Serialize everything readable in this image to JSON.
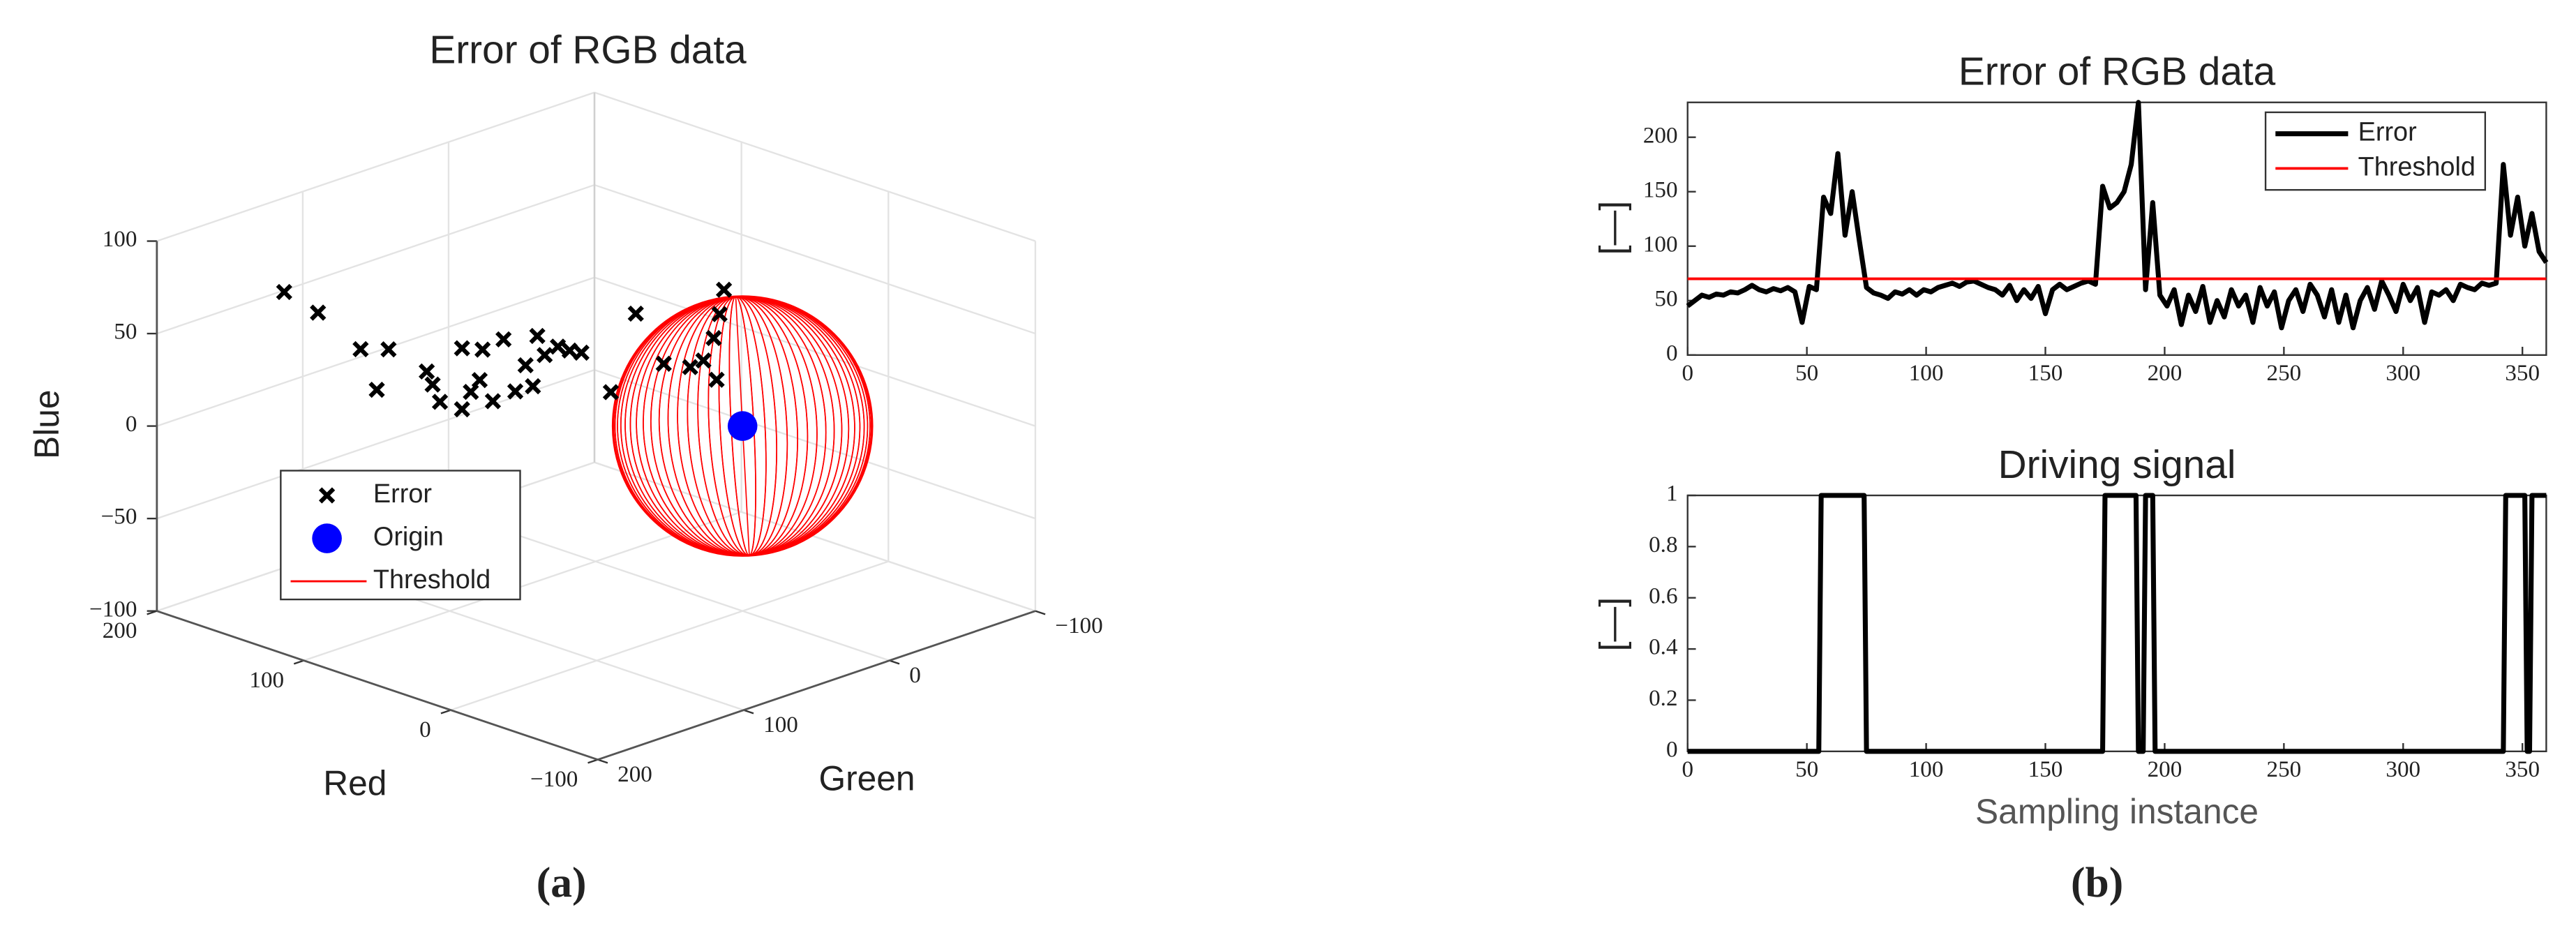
{
  "chart_data": [
    {
      "type": "scatter3d",
      "title": "Error of RGB data",
      "xlabel": "Red",
      "ylabel": "Green",
      "zlabel": "Blue",
      "xlim": [
        -100,
        200
      ],
      "ylim": [
        -100,
        200
      ],
      "zlim": [
        -100,
        100
      ],
      "xticks": [
        {
          "value": -100,
          "label": "−100"
        },
        0,
        100,
        200
      ],
      "yticks": [
        {
          "value": -100,
          "label": "−100"
        },
        0,
        100,
        200
      ],
      "zticks": [
        {
          "value": -100,
          "label": "−100"
        },
        {
          "value": -50,
          "label": "−50"
        },
        0,
        50,
        100
      ],
      "grid": true,
      "legend": "lower left",
      "series": [
        {
          "name": "Error",
          "color": "#000000",
          "x": [
            163,
            140,
            111,
            92,
            100,
            66,
            62,
            57,
            42,
            36,
            42,
            28,
            21,
            30,
            113,
            105,
            98,
            90,
            85,
            76,
            68,
            60,
            93,
            40,
            23,
            4,
            -14,
            -23,
            -30,
            -34,
            -32,
            -37
          ],
          "y": [
            150,
            150,
            150,
            150,
            150,
            150,
            150,
            150,
            150,
            150,
            150,
            150,
            150,
            150,
            50,
            50,
            50,
            50,
            50,
            50,
            50,
            50,
            50,
            50,
            50,
            50,
            50,
            50,
            50,
            50,
            50,
            50
          ],
          "z": [
            69,
            64,
            52,
            57,
            33,
            52,
            46,
            38,
            71,
            49,
            38,
            74,
            48,
            57,
            30,
            4,
            20,
            38,
            29,
            36,
            36,
            37,
            10,
            21,
            68,
            46,
            49,
            55,
            69,
            83,
            47,
            97
          ]
        },
        {
          "name": "Origin",
          "color": "#0000ff",
          "x": [
            0
          ],
          "y": [
            0
          ],
          "z": [
            0
          ]
        },
        {
          "name": "Threshold",
          "color": "#ff0000",
          "radius": 70
        }
      ]
    },
    {
      "type": "line",
      "title": "Error of RGB data",
      "ylabel": "[—]",
      "xlim": [
        0,
        360
      ],
      "ylim": [
        0,
        232
      ],
      "xticks": [
        0,
        50,
        100,
        150,
        200,
        250,
        300,
        350
      ],
      "yticks": [
        0,
        50,
        100,
        150,
        200
      ],
      "legend": "upper right",
      "series": [
        {
          "name": "Error",
          "color": "#000000",
          "x": [
            0,
            3,
            6,
            9,
            12,
            15,
            18,
            21,
            24,
            27,
            30,
            33,
            36,
            39,
            42,
            45,
            48,
            51,
            54,
            57,
            60,
            63,
            66,
            69,
            72,
            75,
            78,
            81,
            84,
            87,
            90,
            93,
            96,
            99,
            102,
            105,
            108,
            111,
            114,
            117,
            120,
            123,
            126,
            129,
            132,
            135,
            138,
            141,
            144,
            147,
            150,
            153,
            156,
            159,
            162,
            165,
            168,
            171,
            174,
            177,
            180,
            183,
            186,
            189,
            192,
            195,
            198,
            201,
            204,
            207,
            210,
            213,
            216,
            219,
            222,
            225,
            228,
            231,
            234,
            237,
            240,
            243,
            246,
            249,
            252,
            255,
            258,
            261,
            264,
            267,
            270,
            273,
            276,
            279,
            282,
            285,
            288,
            291,
            294,
            297,
            300,
            303,
            306,
            309,
            312,
            315,
            318,
            321,
            324,
            327,
            330,
            333,
            336,
            339,
            342,
            345,
            348,
            351,
            354,
            357,
            360
          ],
          "values": [
            45,
            50,
            55,
            53,
            56,
            55,
            58,
            57,
            60,
            64,
            60,
            58,
            61,
            59,
            62,
            58,
            30,
            63,
            60,
            145,
            130,
            185,
            110,
            150,
            105,
            62,
            57,
            55,
            52,
            58,
            56,
            60,
            55,
            60,
            58,
            62,
            64,
            66,
            63,
            67,
            68,
            65,
            62,
            60,
            55,
            64,
            50,
            60,
            52,
            63,
            38,
            60,
            65,
            60,
            63,
            66,
            68,
            65,
            155,
            135,
            140,
            150,
            175,
            232,
            60,
            140,
            55,
            45,
            60,
            28,
            55,
            40,
            63,
            30,
            50,
            35,
            60,
            45,
            55,
            30,
            62,
            45,
            58,
            25,
            50,
            60,
            40,
            65,
            55,
            35,
            60,
            30,
            55,
            25,
            50,
            62,
            42,
            68,
            55,
            40,
            65,
            50,
            62,
            30,
            58,
            55,
            60,
            50,
            65,
            62,
            60,
            66,
            64,
            66,
            175,
            110,
            145,
            100,
            130,
            95,
            85
          ]
        },
        {
          "name": "Threshold",
          "color": "#ff0000",
          "x": [
            0,
            360
          ],
          "values": [
            70,
            70
          ]
        }
      ]
    },
    {
      "type": "line",
      "title": "Driving signal",
      "ylabel": "[—]",
      "xlabel": "Sampling instance",
      "xlim": [
        0,
        360
      ],
      "ylim": [
        0,
        1
      ],
      "xticks": [
        0,
        50,
        100,
        150,
        200,
        250,
        300,
        350
      ],
      "yticks": [
        0,
        0.2,
        0.4,
        0.6,
        0.8,
        1
      ],
      "series": [
        {
          "color": "#000000",
          "x": [
            0,
            55,
            56,
            74,
            75,
            174,
            175,
            188,
            189,
            191,
            192,
            195,
            196,
            342,
            343,
            351,
            352,
            353,
            354,
            360
          ],
          "values": [
            0,
            0,
            1,
            1,
            0,
            0,
            1,
            1,
            0,
            0,
            1,
            1,
            0,
            0,
            1,
            1,
            0,
            0,
            1,
            1
          ]
        }
      ]
    }
  ],
  "captions": [
    "(a)",
    "(b)"
  ]
}
